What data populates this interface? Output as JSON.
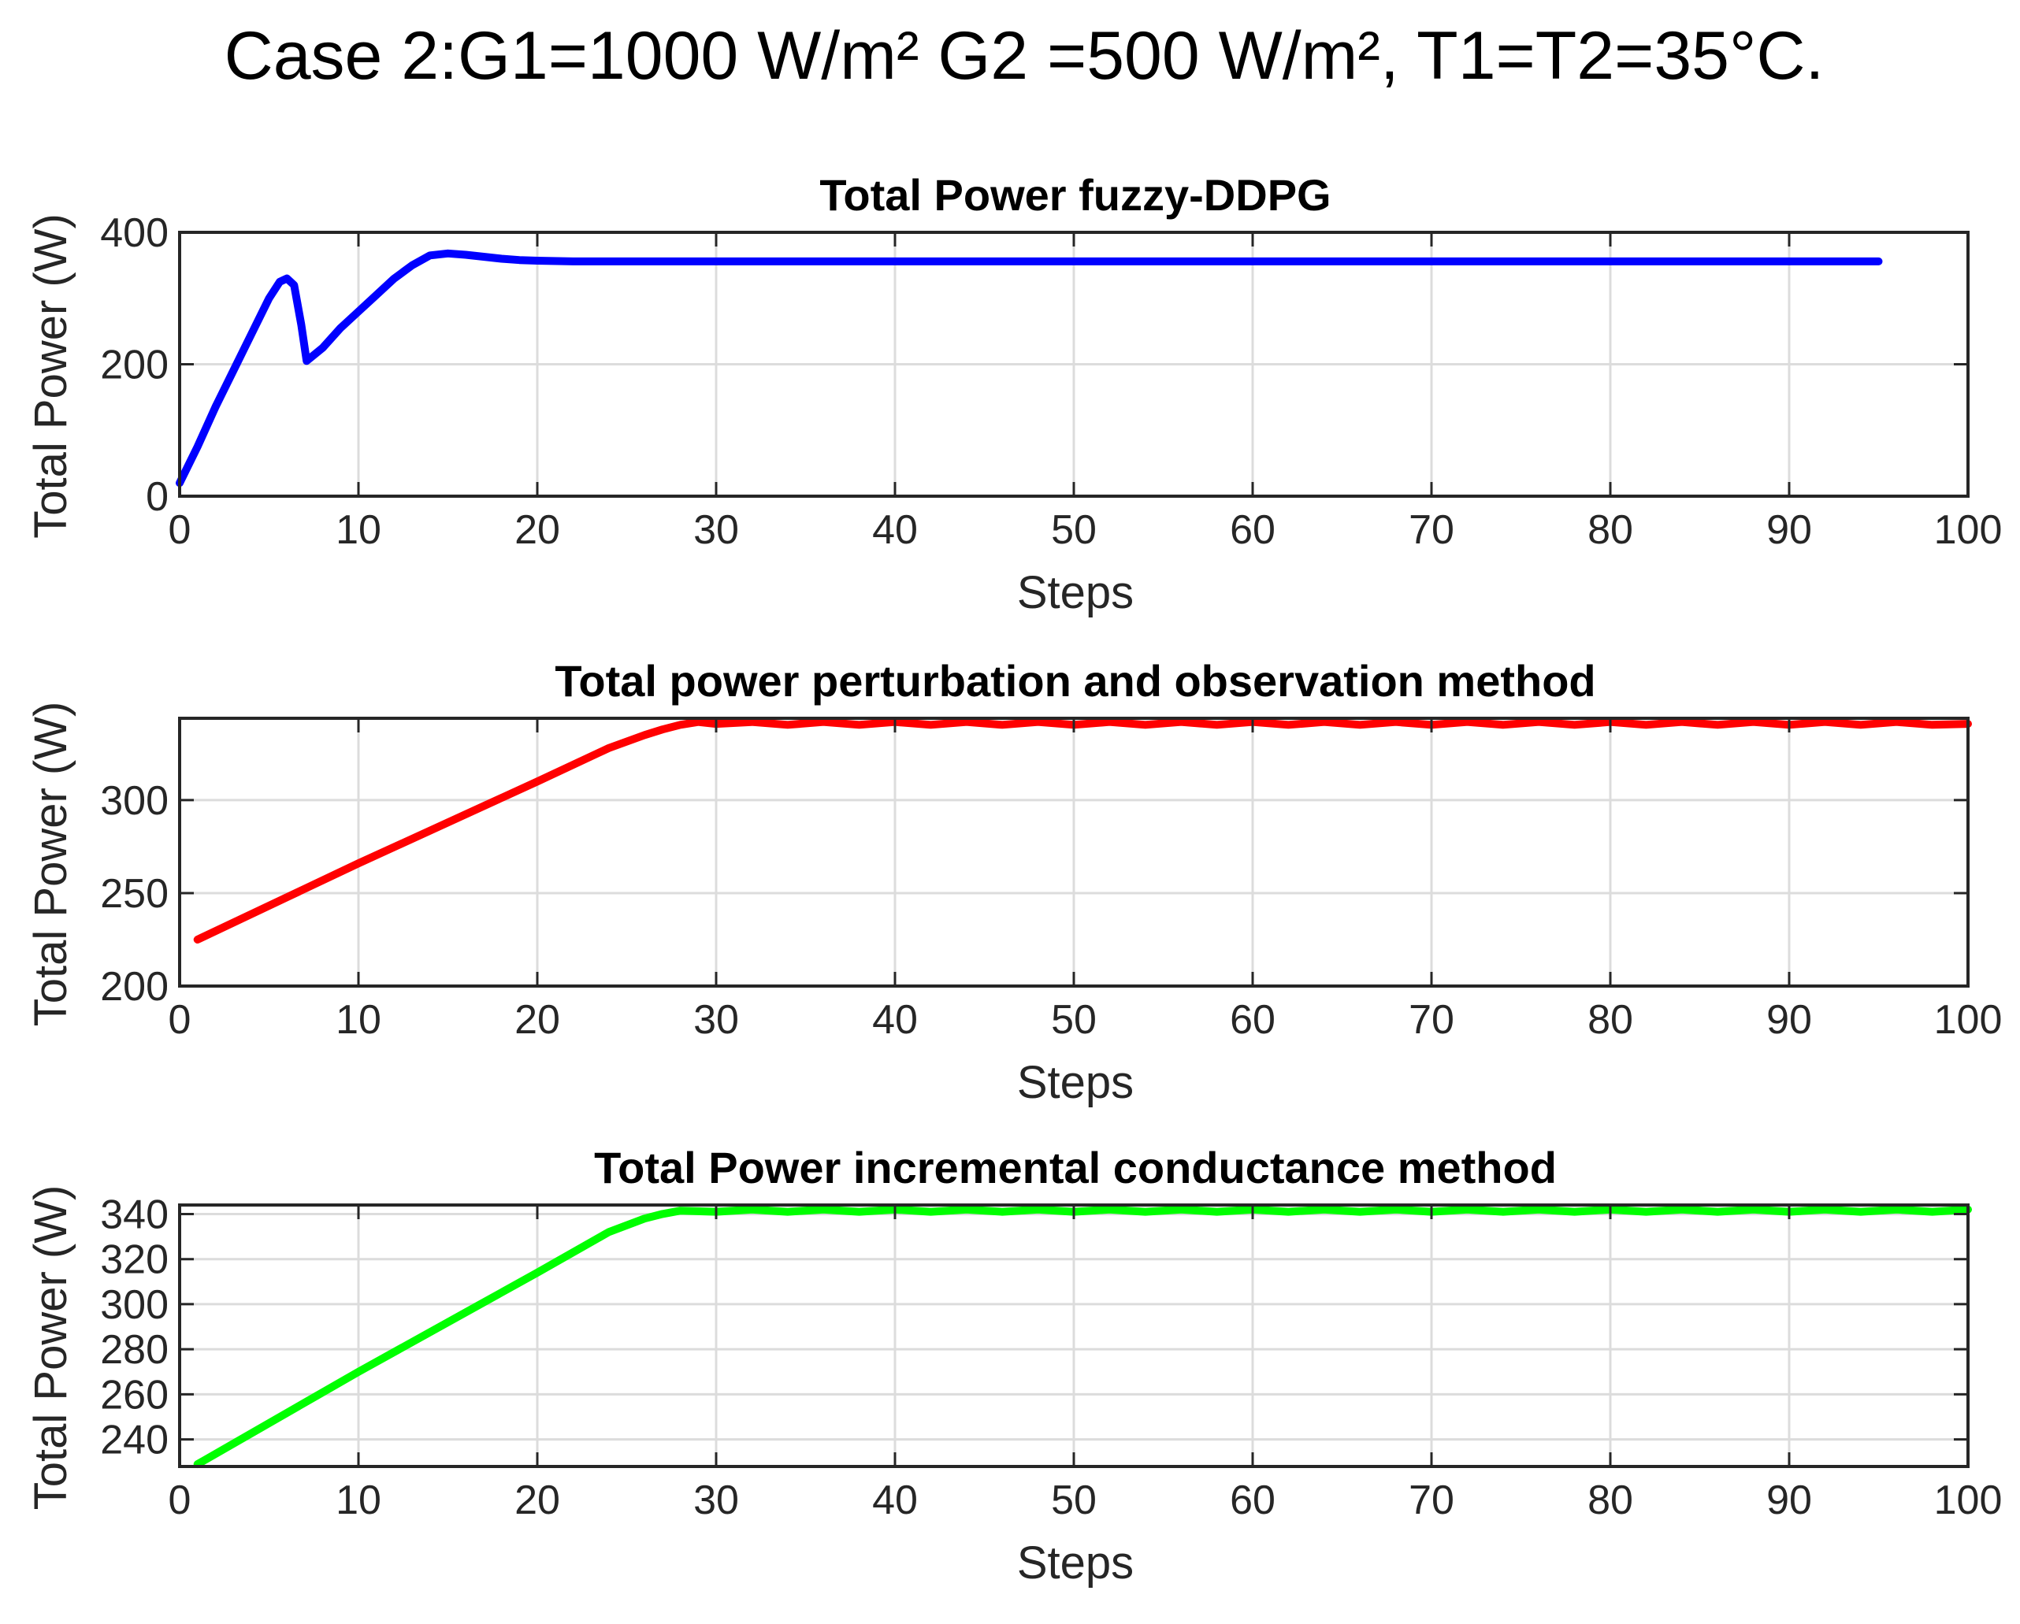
{
  "figure_title": "Case 2:G1=1000 W/m² G2 =500 W/m², T1=T2=35°C.",
  "chart_data": [
    {
      "type": "line",
      "title": "Total Power fuzzy-DDPG",
      "xlabel": "Steps",
      "ylabel": "Total Power (W)",
      "xlim": [
        0,
        100
      ],
      "ylim": [
        0,
        400
      ],
      "xticks": [
        0,
        10,
        20,
        30,
        40,
        50,
        60,
        70,
        80,
        90,
        100
      ],
      "yticks": [
        0,
        200,
        400
      ],
      "grid": true,
      "series": [
        {
          "name": "fuzzy-DDPG",
          "color": "#0000ff",
          "x": [
            0,
            1,
            2,
            3,
            4,
            5,
            5.6,
            6.0,
            6.4,
            6.8,
            7.1,
            8,
            9,
            10,
            11,
            12,
            13,
            14,
            15,
            16,
            17,
            18,
            19,
            20,
            22,
            25,
            30,
            40,
            50,
            60,
            70,
            80,
            90,
            95
          ],
          "y": [
            20,
            75,
            135,
            190,
            245,
            300,
            325,
            330,
            320,
            260,
            205,
            225,
            255,
            280,
            305,
            330,
            350,
            365,
            368,
            366,
            363,
            360,
            358,
            357,
            356,
            356,
            356,
            356,
            356,
            356,
            356,
            356,
            356,
            356
          ]
        }
      ]
    },
    {
      "type": "line",
      "title": "Total power perturbation and observation method",
      "xlabel": "Steps",
      "ylabel": "Total Power (W)",
      "xlim": [
        0,
        100
      ],
      "ylim": [
        200,
        344
      ],
      "xticks": [
        0,
        10,
        20,
        30,
        40,
        50,
        60,
        70,
        80,
        90,
        100
      ],
      "yticks": [
        200,
        250,
        300
      ],
      "grid": true,
      "series": [
        {
          "name": "perturbation and observation",
          "color": "#ff0000",
          "x": [
            1,
            10,
            20,
            24,
            26,
            27,
            28,
            29,
            30,
            32,
            34,
            36,
            38,
            40,
            42,
            44,
            46,
            48,
            50,
            52,
            54,
            56,
            58,
            60,
            62,
            64,
            66,
            68,
            70,
            72,
            74,
            76,
            78,
            80,
            82,
            84,
            86,
            88,
            90,
            92,
            94,
            96,
            98,
            100
          ],
          "y": [
            225,
            266,
            310,
            328,
            335,
            338,
            340.5,
            342,
            341,
            342,
            340.5,
            342,
            340.5,
            342,
            340.5,
            342,
            340.5,
            342,
            340.5,
            342,
            340.5,
            342,
            340.5,
            342,
            340.5,
            342,
            340.5,
            342,
            340.5,
            342,
            340.5,
            342,
            340.5,
            342,
            340.5,
            342,
            340.5,
            342,
            340.5,
            342,
            340.5,
            342,
            340.5,
            341
          ]
        }
      ]
    },
    {
      "type": "line",
      "title": "Total Power incremental conductance method",
      "xlabel": "Steps",
      "ylabel": "Total Power (W)",
      "xlim": [
        0,
        100
      ],
      "ylim": [
        228,
        344
      ],
      "xticks": [
        0,
        10,
        20,
        30,
        40,
        50,
        60,
        70,
        80,
        90,
        100
      ],
      "yticks": [
        240,
        260,
        280,
        300,
        320,
        340
      ],
      "grid": true,
      "series": [
        {
          "name": "incremental conductance",
          "color": "#00ff00",
          "x": [
            1,
            10,
            20,
            24,
            26,
            27,
            28,
            30,
            32,
            34,
            36,
            38,
            40,
            42,
            44,
            46,
            48,
            50,
            52,
            54,
            56,
            58,
            60,
            62,
            64,
            66,
            68,
            70,
            72,
            74,
            76,
            78,
            80,
            82,
            84,
            86,
            88,
            90,
            92,
            94,
            96,
            98,
            100
          ],
          "y": [
            229,
            270,
            314,
            332,
            338,
            340,
            341.5,
            341,
            342,
            341,
            342,
            341,
            342,
            341,
            342,
            341,
            342,
            341,
            342,
            341,
            342,
            341,
            342,
            341,
            342,
            341,
            342,
            341,
            342,
            341,
            342,
            341,
            342,
            341,
            342,
            341,
            342,
            341,
            342,
            341,
            342,
            341,
            342
          ]
        }
      ]
    }
  ]
}
